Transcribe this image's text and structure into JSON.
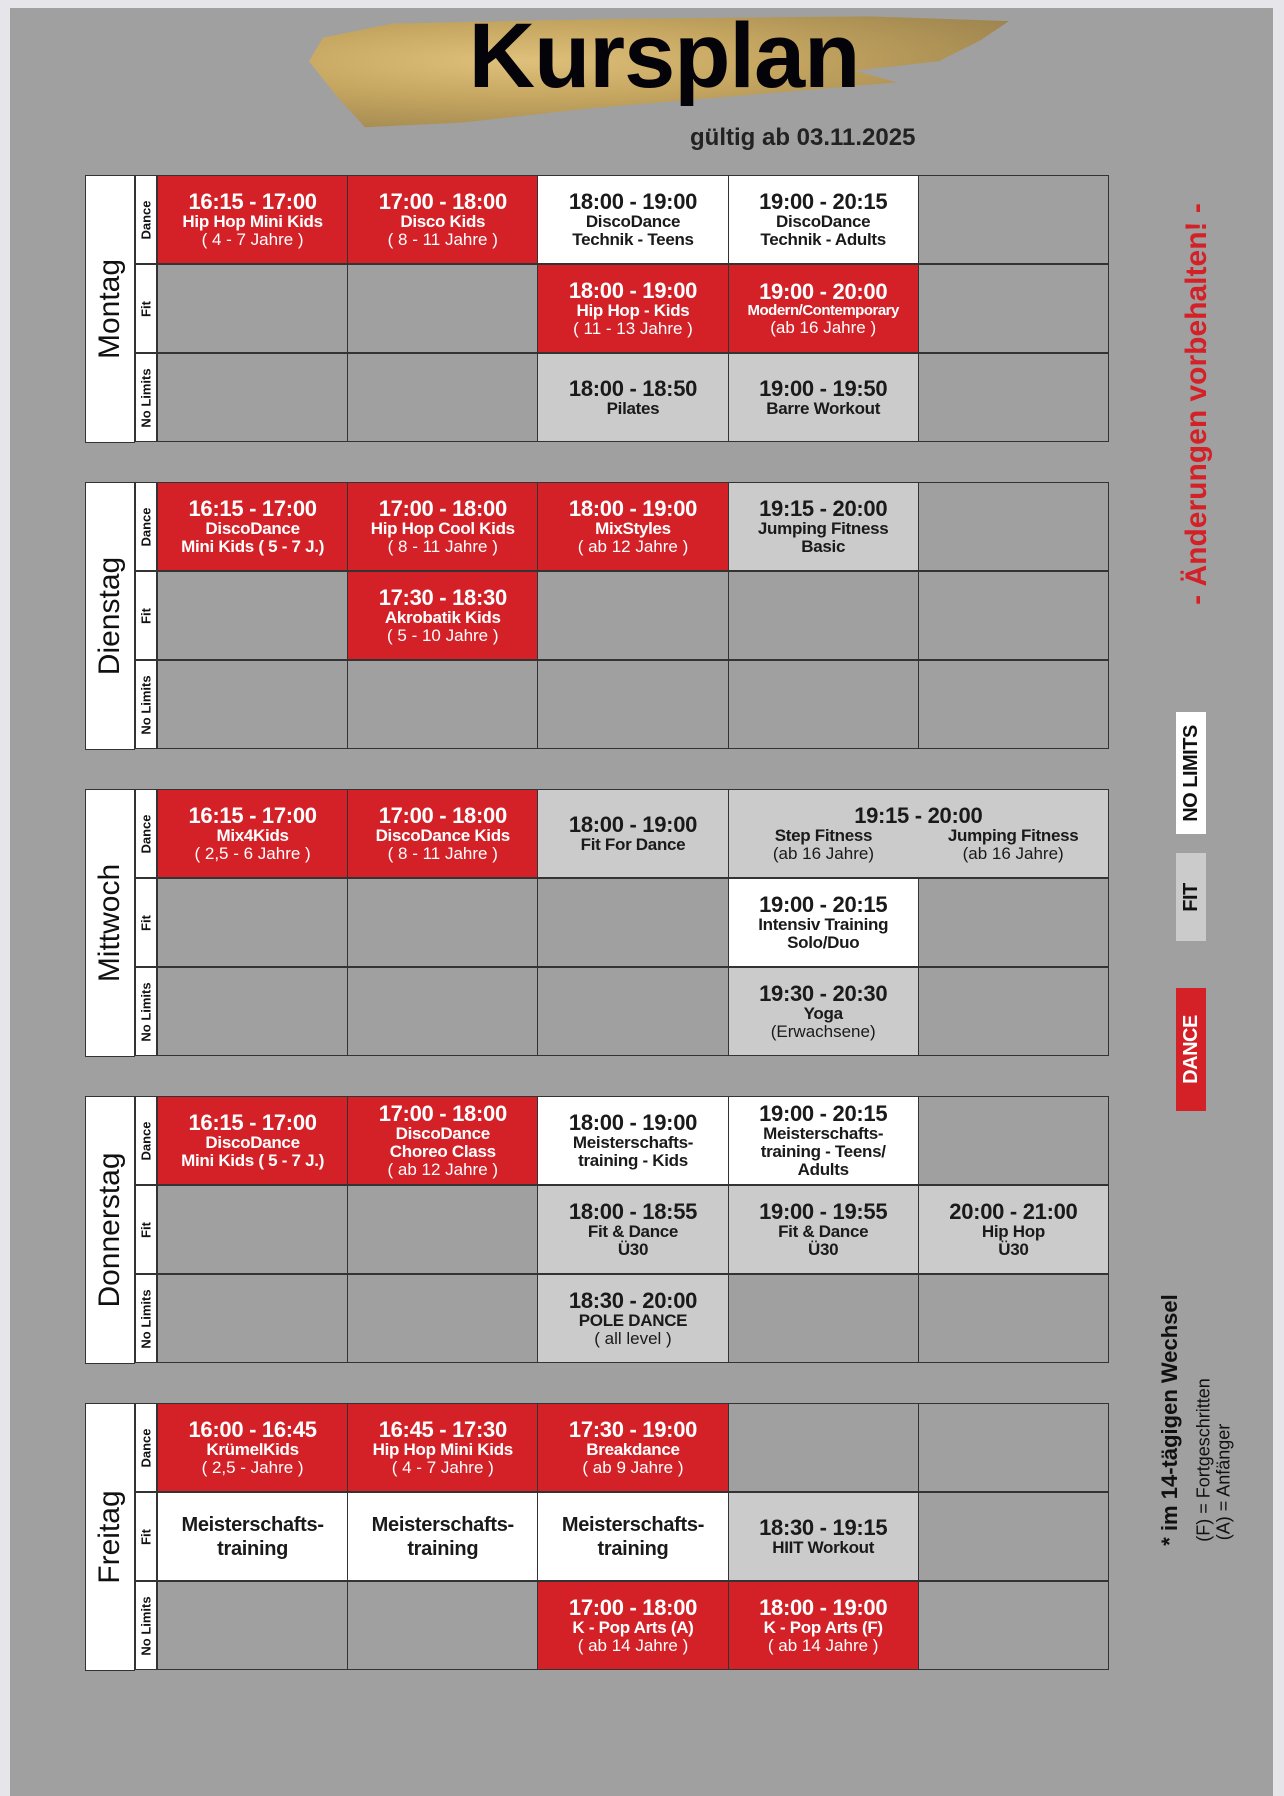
{
  "header": {
    "title": "Kursplan",
    "valid_from": "gültig ab 03.11.2025"
  },
  "side": {
    "changes_notice": "- Änderungen vorbehalten! -",
    "legend": [
      {
        "label": "NO LIMITS",
        "color": "#ffffff"
      },
      {
        "label": "FIT",
        "color": "#cbcbcb"
      },
      {
        "label": "DANCE",
        "color": "#d42027"
      }
    ],
    "notes": [
      "* im 14-tägigen Wechsel",
      "(F) = Fortgeschritten",
      "(A) = Anfänger"
    ]
  },
  "categories": [
    "Dance",
    "Fit",
    "No Limits"
  ],
  "days": [
    {
      "name": "Montag",
      "rows": [
        [
          {
            "c": "red",
            "lines": [
              [
                "t",
                "16:15 - 17:00"
              ],
              [
                "n",
                "Hip Hop Mini Kids"
              ],
              [
                "a",
                "( 4 - 7 Jahre )"
              ]
            ]
          },
          {
            "c": "red",
            "lines": [
              [
                "t",
                "17:00 - 18:00"
              ],
              [
                "n",
                "Disco Kids"
              ],
              [
                "a",
                "( 8 - 11 Jahre )"
              ]
            ]
          },
          {
            "c": "white",
            "lines": [
              [
                "t",
                "18:00 - 19:00"
              ],
              [
                "n",
                "DiscoDance"
              ],
              [
                "n",
                "Technik - Teens"
              ]
            ]
          },
          {
            "c": "white",
            "lines": [
              [
                "t",
                "19:00 - 20:15"
              ],
              [
                "n",
                "DiscoDance"
              ],
              [
                "n",
                "Technik - Adults"
              ]
            ]
          },
          {
            "c": "empty",
            "lines": []
          }
        ],
        [
          {
            "c": "empty",
            "lines": []
          },
          {
            "c": "empty",
            "lines": []
          },
          {
            "c": "red",
            "lines": [
              [
                "t",
                "18:00 - 19:00"
              ],
              [
                "n",
                "Hip Hop - Kids"
              ],
              [
                "a",
                "( 11 - 13 Jahre )"
              ]
            ]
          },
          {
            "c": "red",
            "lines": [
              [
                "t",
                "19:00 - 20:00"
              ],
              [
                "ns",
                "Modern/Contemporary"
              ],
              [
                "a",
                "(ab 16 Jahre )"
              ]
            ]
          },
          {
            "c": "empty",
            "lines": []
          }
        ],
        [
          {
            "c": "empty",
            "lines": []
          },
          {
            "c": "empty",
            "lines": []
          },
          {
            "c": "light",
            "lines": [
              [
                "t",
                "18:00 - 18:50"
              ],
              [
                "n",
                "Pilates"
              ]
            ]
          },
          {
            "c": "light",
            "lines": [
              [
                "t",
                "19:00 - 19:50"
              ],
              [
                "n",
                "Barre Workout"
              ]
            ]
          },
          {
            "c": "empty",
            "lines": []
          }
        ]
      ]
    },
    {
      "name": "Dienstag",
      "rows": [
        [
          {
            "c": "red",
            "lines": [
              [
                "t",
                "16:15 - 17:00"
              ],
              [
                "n",
                "DiscoDance"
              ],
              [
                "n",
                "Mini Kids ( 5 - 7 J.)"
              ]
            ]
          },
          {
            "c": "red",
            "lines": [
              [
                "t",
                "17:00 - 18:00"
              ],
              [
                "n",
                "Hip Hop Cool Kids"
              ],
              [
                "a",
                "( 8 - 11 Jahre )"
              ]
            ]
          },
          {
            "c": "red",
            "lines": [
              [
                "t",
                "18:00 - 19:00"
              ],
              [
                "n",
                "MixStyles"
              ],
              [
                "a",
                "( ab 12 Jahre )"
              ]
            ]
          },
          {
            "c": "light",
            "lines": [
              [
                "t",
                "19:15 - 20:00"
              ],
              [
                "n",
                "Jumping Fitness"
              ],
              [
                "n",
                "Basic"
              ]
            ]
          },
          {
            "c": "empty",
            "lines": []
          }
        ],
        [
          {
            "c": "empty",
            "lines": []
          },
          {
            "c": "red",
            "lines": [
              [
                "t",
                "17:30 - 18:30"
              ],
              [
                "n",
                "Akrobatik Kids"
              ],
              [
                "a",
                "( 5 - 10 Jahre )"
              ]
            ]
          },
          {
            "c": "empty",
            "lines": []
          },
          {
            "c": "empty",
            "lines": []
          },
          {
            "c": "empty",
            "lines": []
          }
        ],
        [
          {
            "c": "empty",
            "lines": []
          },
          {
            "c": "empty",
            "lines": []
          },
          {
            "c": "empty",
            "lines": []
          },
          {
            "c": "empty",
            "lines": []
          },
          {
            "c": "empty",
            "lines": []
          }
        ]
      ]
    },
    {
      "name": "Mittwoch",
      "rows": [
        [
          {
            "c": "red",
            "lines": [
              [
                "t",
                "16:15 - 17:00"
              ],
              [
                "n",
                "Mix4Kids"
              ],
              [
                "a",
                "( 2,5 - 6 Jahre )"
              ]
            ]
          },
          {
            "c": "red",
            "lines": [
              [
                "t",
                "17:00 - 18:00"
              ],
              [
                "n",
                "DiscoDance Kids"
              ],
              [
                "a",
                "( 8 - 11 Jahre )"
              ]
            ]
          },
          {
            "c": "light",
            "lines": [
              [
                "t",
                "18:00 - 19:00"
              ],
              [
                "n",
                "Fit For Dance"
              ]
            ]
          },
          {
            "c": "light",
            "span": 2,
            "lines": [
              [
                "t",
                "19:15 - 20:00"
              ]
            ],
            "subs": [
              [
                [
                  "n",
                  "Step Fitness"
                ],
                [
                  "a",
                  "(ab 16 Jahre)"
                ]
              ],
              [
                [
                  "n",
                  "Jumping Fitness"
                ],
                [
                  "a",
                  "(ab 16 Jahre)"
                ]
              ]
            ]
          }
        ],
        [
          {
            "c": "empty",
            "lines": []
          },
          {
            "c": "empty",
            "lines": []
          },
          {
            "c": "empty",
            "lines": []
          },
          {
            "c": "white",
            "lines": [
              [
                "t",
                "19:00 - 20:15"
              ],
              [
                "n",
                "Intensiv Training"
              ],
              [
                "n",
                "Solo/Duo"
              ]
            ]
          },
          {
            "c": "empty",
            "lines": []
          }
        ],
        [
          {
            "c": "empty",
            "lines": []
          },
          {
            "c": "empty",
            "lines": []
          },
          {
            "c": "empty",
            "lines": []
          },
          {
            "c": "light",
            "lines": [
              [
                "t",
                "19:30 - 20:30"
              ],
              [
                "n",
                "Yoga"
              ],
              [
                "a",
                "(Erwachsene)"
              ]
            ]
          },
          {
            "c": "empty",
            "lines": []
          }
        ]
      ]
    },
    {
      "name": "Donnerstag",
      "rows": [
        [
          {
            "c": "red",
            "lines": [
              [
                "t",
                "16:15 - 17:00"
              ],
              [
                "n",
                "DiscoDance"
              ],
              [
                "n",
                "Mini Kids ( 5 - 7 J.)"
              ]
            ]
          },
          {
            "c": "red",
            "lines": [
              [
                "t",
                "17:00 - 18:00"
              ],
              [
                "n",
                "DiscoDance"
              ],
              [
                "n",
                "Choreo Class"
              ],
              [
                "a",
                "( ab 12 Jahre )"
              ]
            ]
          },
          {
            "c": "white",
            "lines": [
              [
                "t",
                "18:00 - 19:00"
              ],
              [
                "n",
                "Meisterschafts-"
              ],
              [
                "n",
                "training - Kids"
              ]
            ]
          },
          {
            "c": "white",
            "lines": [
              [
                "t",
                "19:00 - 20:15"
              ],
              [
                "n",
                "Meisterschafts-"
              ],
              [
                "n",
                "training - Teens/"
              ],
              [
                "n",
                "Adults"
              ]
            ]
          },
          {
            "c": "empty",
            "lines": []
          }
        ],
        [
          {
            "c": "empty",
            "lines": []
          },
          {
            "c": "empty",
            "lines": []
          },
          {
            "c": "light",
            "lines": [
              [
                "t",
                "18:00 - 18:55"
              ],
              [
                "n",
                "Fit & Dance"
              ],
              [
                "n",
                "Ü30"
              ]
            ]
          },
          {
            "c": "light",
            "lines": [
              [
                "t",
                "19:00 - 19:55"
              ],
              [
                "n",
                "Fit & Dance"
              ],
              [
                "n",
                "Ü30"
              ]
            ]
          },
          {
            "c": "light",
            "lines": [
              [
                "t",
                "20:00 - 21:00"
              ],
              [
                "n",
                "Hip Hop"
              ],
              [
                "n",
                "Ü30"
              ]
            ]
          }
        ],
        [
          {
            "c": "empty",
            "lines": []
          },
          {
            "c": "empty",
            "lines": []
          },
          {
            "c": "light",
            "lines": [
              [
                "t",
                "18:30 - 20:00"
              ],
              [
                "n",
                "POLE DANCE"
              ],
              [
                "a",
                "( all level )"
              ]
            ]
          },
          {
            "c": "empty",
            "lines": []
          },
          {
            "c": "empty",
            "lines": []
          }
        ]
      ]
    },
    {
      "name": "Freitag",
      "rows": [
        [
          {
            "c": "red",
            "lines": [
              [
                "t",
                "16:00 - 16:45"
              ],
              [
                "n",
                "KrümelKids"
              ],
              [
                "a",
                "( 2,5 - Jahre )"
              ]
            ]
          },
          {
            "c": "red",
            "lines": [
              [
                "t",
                "16:45 - 17:30"
              ],
              [
                "n",
                "Hip Hop Mini Kids"
              ],
              [
                "a",
                "( 4 - 7 Jahre )"
              ]
            ]
          },
          {
            "c": "red",
            "lines": [
              [
                "t",
                "17:30 - 19:00"
              ],
              [
                "n",
                "Breakdance"
              ],
              [
                "a",
                "( ab 9 Jahre )"
              ]
            ]
          },
          {
            "c": "empty",
            "lines": []
          },
          {
            "c": "empty",
            "lines": []
          }
        ],
        [
          {
            "c": "white",
            "lines": [
              [
                "nb",
                "Meisterschafts-"
              ],
              [
                "nb",
                "training"
              ]
            ]
          },
          {
            "c": "white",
            "lines": [
              [
                "nb",
                "Meisterschafts-"
              ],
              [
                "nb",
                "training"
              ]
            ]
          },
          {
            "c": "white",
            "lines": [
              [
                "nb",
                "Meisterschafts-"
              ],
              [
                "nb",
                "training"
              ]
            ]
          },
          {
            "c": "light",
            "lines": [
              [
                "t",
                "18:30 - 19:15"
              ],
              [
                "n",
                "HIIT Workout"
              ]
            ]
          },
          {
            "c": "empty",
            "lines": []
          }
        ],
        [
          {
            "c": "empty",
            "lines": []
          },
          {
            "c": "empty",
            "lines": []
          },
          {
            "c": "red",
            "lines": [
              [
                "t",
                "17:00 - 18:00"
              ],
              [
                "n",
                "K - Pop Arts (A)"
              ],
              [
                "a",
                "( ab 14 Jahre )"
              ]
            ]
          },
          {
            "c": "red",
            "lines": [
              [
                "t",
                "18:00 - 19:00"
              ],
              [
                "n",
                "K - Pop Arts (F)"
              ],
              [
                "a",
                "( ab 14 Jahre )"
              ]
            ]
          },
          {
            "c": "empty",
            "lines": []
          }
        ]
      ]
    }
  ]
}
